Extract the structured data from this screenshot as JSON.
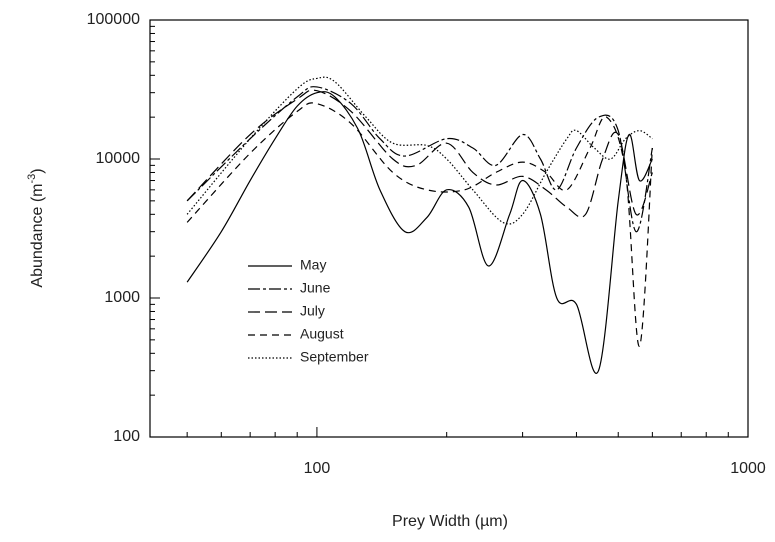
{
  "chart_data": {
    "type": "line",
    "x_label": "Prey Width (µm)",
    "y_label": {
      "text": "Abundance (m",
      "superscript": "-3",
      "suffix": ")"
    },
    "xscale": "log",
    "yscale": "log",
    "xlim": [
      41,
      1000
    ],
    "ylim": [
      100,
      100000
    ],
    "xticks": [
      100,
      1000
    ],
    "yticks": [
      100,
      1000,
      10000,
      100000
    ],
    "xminorticks": [
      50,
      60,
      70,
      80,
      90,
      200,
      300,
      400,
      500,
      600,
      700,
      800,
      900
    ],
    "yminorticks": [
      200,
      300,
      400,
      500,
      600,
      700,
      800,
      900,
      2000,
      3000,
      4000,
      5000,
      6000,
      7000,
      8000,
      9000,
      20000,
      30000,
      40000,
      50000,
      60000,
      70000,
      80000,
      90000
    ],
    "series": [
      {
        "name": "May",
        "color": "#000000",
        "dash": "solid",
        "x": [
          50,
          60,
          70,
          80,
          90,
          100,
          110,
          125,
          140,
          160,
          180,
          200,
          225,
          250,
          280,
          300,
          330,
          360,
          400,
          450,
          500,
          530,
          560,
          600
        ],
        "values": [
          1300,
          3000,
          7000,
          14000,
          24000,
          30000,
          28000,
          16000,
          6000,
          3000,
          3800,
          6000,
          4500,
          1700,
          4000,
          7000,
          4000,
          1000,
          900,
          300,
          5000,
          15000,
          7000,
          10000
        ]
      },
      {
        "name": "June",
        "color": "#000000",
        "dash": "dashdot",
        "x": [
          50,
          70,
          90,
          100,
          120,
          140,
          160,
          200,
          230,
          260,
          300,
          330,
          360,
          400,
          450,
          500,
          550,
          600
        ],
        "values": [
          5000,
          14000,
          28000,
          33000,
          25000,
          14000,
          10500,
          14000,
          12000,
          9000,
          15000,
          10000,
          6000,
          12000,
          20000,
          16000,
          3000,
          12000
        ]
      },
      {
        "name": "July",
        "color": "#000000",
        "dash": "longdash",
        "x": [
          50,
          70,
          90,
          100,
          120,
          150,
          170,
          200,
          230,
          260,
          300,
          340,
          380,
          420,
          460,
          500,
          550,
          600
        ],
        "values": [
          5000,
          15000,
          27000,
          31000,
          22000,
          10000,
          9000,
          13000,
          8000,
          6500,
          7500,
          6000,
          4500,
          4000,
          10000,
          15000,
          4000,
          8000
        ]
      },
      {
        "name": "August",
        "color": "#000000",
        "dash": "dash",
        "x": [
          50,
          70,
          90,
          100,
          120,
          150,
          180,
          220,
          260,
          300,
          340,
          380,
          430,
          470,
          520,
          560,
          600
        ],
        "values": [
          3500,
          11000,
          22000,
          25000,
          18000,
          8000,
          6000,
          6000,
          8000,
          9500,
          8000,
          6000,
          12000,
          20000,
          8000,
          450,
          12000
        ]
      },
      {
        "name": "September",
        "color": "#000000",
        "dash": "dot",
        "x": [
          50,
          70,
          90,
          100,
          110,
          130,
          150,
          180,
          200,
          230,
          270,
          300,
          340,
          380,
          400,
          440,
          480,
          520,
          560,
          600
        ],
        "values": [
          4000,
          14000,
          32000,
          38000,
          36000,
          20000,
          13000,
          12500,
          10000,
          6000,
          3500,
          4000,
          8000,
          14000,
          16000,
          12000,
          10000,
          14000,
          16000,
          14000
        ]
      }
    ]
  }
}
